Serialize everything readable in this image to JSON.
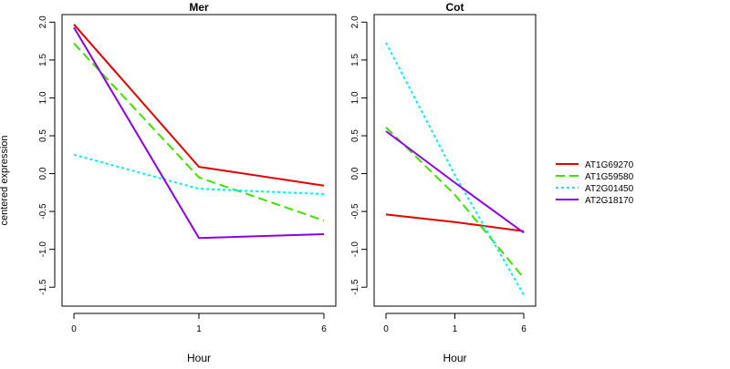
{
  "figure": {
    "ylabel": "centered expression"
  },
  "chart_data": [
    {
      "type": "line",
      "title": "Mer",
      "xlabel": "Hour",
      "ylabel": "centered expression",
      "categories": [
        "0",
        "1",
        "6"
      ],
      "yticks": [
        "-1.5",
        "-1.0",
        "-0.5",
        "0.0",
        "0.5",
        "1.0",
        "1.5",
        "2.0"
      ],
      "ylim": [
        -1.75,
        2.1
      ],
      "series": [
        {
          "name": "AT1G69270",
          "color": "#e00000",
          "dash": "solid",
          "values": [
            1.97,
            0.09,
            -0.16
          ]
        },
        {
          "name": "AT1G59580",
          "color": "#44dd00",
          "dash": "long-dash",
          "values": [
            1.72,
            -0.05,
            -0.62
          ]
        },
        {
          "name": "AT2G01450",
          "color": "#00eeee",
          "dash": "dotted",
          "values": [
            0.25,
            -0.2,
            -0.27
          ]
        },
        {
          "name": "AT2G18170",
          "color": "#8a00e6",
          "dash": "solid",
          "values": [
            1.93,
            -0.85,
            -0.8
          ]
        }
      ]
    },
    {
      "type": "line",
      "title": "Cot",
      "xlabel": "Hour",
      "categories": [
        "0",
        "1",
        "6"
      ],
      "yticks": [
        "-1.5",
        "-1.0",
        "-0.5",
        "0.0",
        "0.5",
        "1.0",
        "1.5",
        "2.0"
      ],
      "ylim": [
        -1.75,
        2.1
      ],
      "series": [
        {
          "name": "AT1G69270",
          "color": "#e00000",
          "dash": "solid",
          "values": [
            -0.54,
            -0.64,
            -0.76
          ]
        },
        {
          "name": "AT1G59580",
          "color": "#44dd00",
          "dash": "long-dash",
          "values": [
            0.61,
            -0.28,
            -1.38
          ]
        },
        {
          "name": "AT2G01450",
          "color": "#00eeee",
          "dash": "dotted",
          "values": [
            1.73,
            -0.02,
            -1.6
          ]
        },
        {
          "name": "AT2G18170",
          "color": "#8a00e6",
          "dash": "solid",
          "values": [
            0.56,
            -0.12,
            -0.78
          ]
        }
      ]
    }
  ],
  "legend": {
    "position": "right",
    "entries": [
      {
        "label": "AT1G69270",
        "color": "#e00000",
        "dash": "solid"
      },
      {
        "label": "AT1G59580",
        "color": "#44dd00",
        "dash": "long-dash"
      },
      {
        "label": "AT2G01450",
        "color": "#00eeee",
        "dash": "dotted"
      },
      {
        "label": "AT2G18170",
        "color": "#8a00e6",
        "dash": "solid"
      }
    ]
  }
}
